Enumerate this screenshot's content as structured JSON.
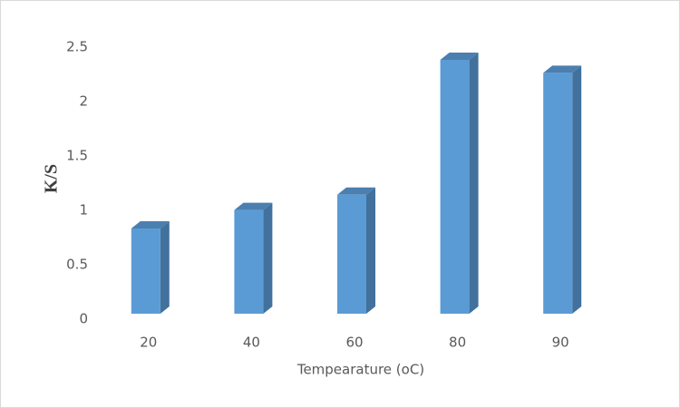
{
  "chart_data": {
    "type": "bar3d",
    "y_label": "K/S",
    "x_label": "Tempearature (oC)",
    "categories": [
      "20",
      "40",
      "60",
      "80",
      "90"
    ],
    "values": [
      0.85,
      1.02,
      1.16,
      2.4,
      2.28
    ],
    "color": "#5b9bd5",
    "side_color": "#41719c",
    "top_color": "#4a7fb0",
    "ylim": [
      0,
      2.5
    ],
    "yticks": [
      0,
      0.5,
      1,
      1.5,
      2,
      2.5
    ],
    "grid": false
  }
}
